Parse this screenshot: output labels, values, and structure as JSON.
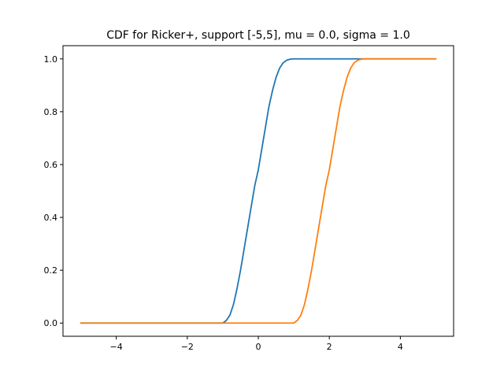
{
  "chart_data": {
    "type": "line",
    "title": "CDF for Ricker+, support [-5,5], mu = 0.0, sigma = 1.0",
    "xlabel": "",
    "ylabel": "",
    "xlim": [
      -5.5,
      5.5
    ],
    "ylim": [
      -0.05,
      1.05
    ],
    "x_ticks": [
      -4,
      -2,
      0,
      2,
      4
    ],
    "x_tick_labels": [
      "−4",
      "−2",
      "0",
      "2",
      "4"
    ],
    "y_ticks": [
      0.0,
      0.2,
      0.4,
      0.6,
      0.8,
      1.0
    ],
    "y_tick_labels": [
      "0.0",
      "0.2",
      "0.4",
      "0.6",
      "0.8",
      "1.0"
    ],
    "grid": false,
    "legend": "none",
    "series": [
      {
        "color": "#1f77b4",
        "x": [
          -5,
          -1,
          -0.9,
          -0.8,
          -0.7,
          -0.6,
          -0.5,
          -0.4,
          -0.3,
          -0.2,
          -0.1,
          0,
          0.1,
          0.2,
          0.3,
          0.4,
          0.5,
          0.6,
          0.7,
          0.8,
          0.9,
          1,
          5
        ],
        "y": [
          0,
          0,
          0.01,
          0.03,
          0.07,
          0.13,
          0.2,
          0.28,
          0.36,
          0.44,
          0.52,
          0.58,
          0.66,
          0.74,
          0.82,
          0.88,
          0.93,
          0.965,
          0.985,
          0.995,
          0.999,
          1,
          1
        ]
      },
      {
        "color": "#ff7f0e",
        "x": [
          -5,
          1,
          1.1,
          1.2,
          1.3,
          1.4,
          1.5,
          1.6,
          1.7,
          1.8,
          1.9,
          2,
          2.1,
          2.2,
          2.3,
          2.4,
          2.5,
          2.6,
          2.7,
          2.8,
          2.9,
          3,
          5
        ],
        "y": [
          0,
          0,
          0.01,
          0.03,
          0.07,
          0.13,
          0.2,
          0.28,
          0.36,
          0.44,
          0.52,
          0.58,
          0.66,
          0.74,
          0.82,
          0.88,
          0.93,
          0.965,
          0.985,
          0.995,
          0.999,
          1,
          1
        ]
      }
    ]
  }
}
